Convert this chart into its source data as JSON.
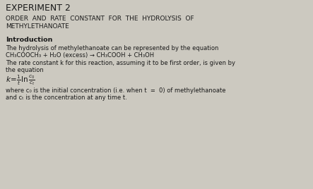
{
  "bg_color": "#ccc9c0",
  "text_color": "#1a1a1a",
  "title": "EXPERIMENT 2",
  "subtitle_line1": "ORDER  AND  RATE  CONSTANT  FOR  THE  HYDROLYSIS  OF",
  "subtitle_line2": "METHYLETHANOATE",
  "intro_header": "Introduction",
  "line1": "The hydrolysis of methylethanoate can be represented by the equation",
  "line2": "CH₃COOCH₃ + H₂O (excess) → CH₃COOH + CH₃OH",
  "line3": "The rate constant k for this reaction, assuming it to be first order, is given by",
  "line4": "the equation",
  "line5": "where c₀ is the initial concentration (i.e. when t  =  0) of methylethanoate",
  "line6": "and cₜ is the concentration at any time t.",
  "figwidth": 4.43,
  "figheight": 2.68,
  "dpi": 100
}
